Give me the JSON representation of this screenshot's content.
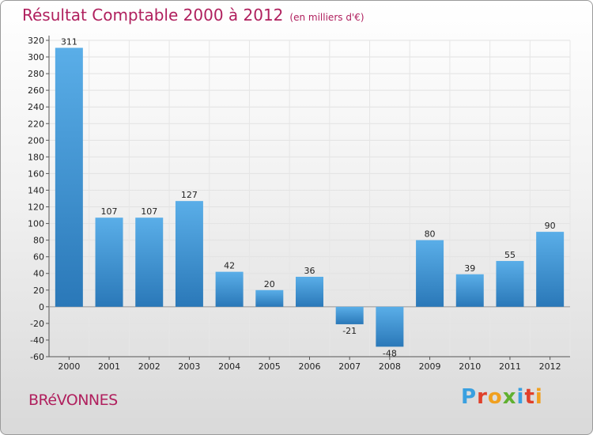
{
  "header": {
    "title": "Résultat Comptable 2000 à 2012",
    "subtitle": "(en milliers d'€)"
  },
  "footer": {
    "town": "BRéVONNES",
    "logo_letters": [
      "P",
      "r",
      "o",
      "x",
      "i",
      "t",
      "i"
    ],
    "logo_colors": [
      "#3aa0e0",
      "#e0402a",
      "#f0a020",
      "#60b030",
      "#3aa0e0",
      "#e0402a",
      "#f0a020"
    ]
  },
  "colors": {
    "title": "#b0205e",
    "bar_top": "#5aaee8",
    "bar_bottom": "#2a78b8"
  },
  "chart_data": {
    "type": "bar",
    "title": "Résultat Comptable 2000 à 2012",
    "subtitle": "(en milliers d'€)",
    "xlabel": "",
    "ylabel": "",
    "categories": [
      "2000",
      "2001",
      "2002",
      "2003",
      "2004",
      "2005",
      "2006",
      "2007",
      "2008",
      "2009",
      "2010",
      "2011",
      "2012"
    ],
    "values": [
      311,
      107,
      107,
      127,
      42,
      20,
      36,
      -21,
      -48,
      80,
      39,
      55,
      90
    ],
    "value_labels": [
      "311",
      "107",
      "107",
      "127",
      "42",
      "20",
      "36",
      "-21",
      "-48",
      "80",
      "39",
      "55",
      "90"
    ],
    "ylim": [
      -60,
      320
    ],
    "yticks": [
      -60,
      -40,
      -20,
      0,
      20,
      40,
      60,
      80,
      100,
      120,
      140,
      160,
      180,
      200,
      220,
      240,
      260,
      280,
      300,
      320
    ],
    "grid": true
  }
}
